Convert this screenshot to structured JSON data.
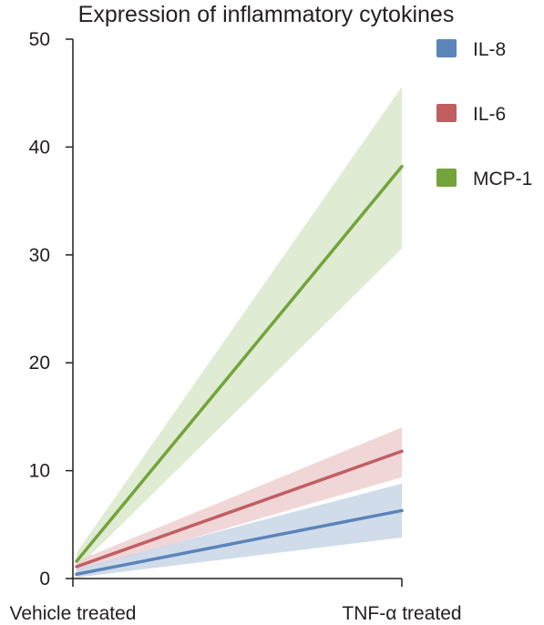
{
  "chart_data": {
    "type": "line",
    "title": "Expression of inflammatory cytokines",
    "categories": [
      "Vehicle treated",
      "TNF-α treated"
    ],
    "ylim": [
      0,
      50
    ],
    "yticks": [
      "0",
      "10",
      "20",
      "30",
      "40",
      "50"
    ],
    "legend_position": "top-right",
    "grid": false,
    "series": [
      {
        "name": "IL-8",
        "color": "#5b84b9",
        "band_color": "#c9d6e8",
        "values": [
          0.4,
          6.3
        ],
        "lower": [
          0.1,
          3.8
        ],
        "upper": [
          0.9,
          8.8
        ]
      },
      {
        "name": "IL-6",
        "color": "#c05f62",
        "band_color": "#efcfd1",
        "values": [
          1.1,
          11.8
        ],
        "lower": [
          0.6,
          9.4
        ],
        "upper": [
          1.6,
          14.0
        ]
      },
      {
        "name": "MCP-1",
        "color": "#72a43b",
        "band_color": "#dbe8cc",
        "values": [
          1.6,
          38.2
        ],
        "lower": [
          0.9,
          30.6
        ],
        "upper": [
          2.4,
          45.6
        ]
      }
    ]
  }
}
